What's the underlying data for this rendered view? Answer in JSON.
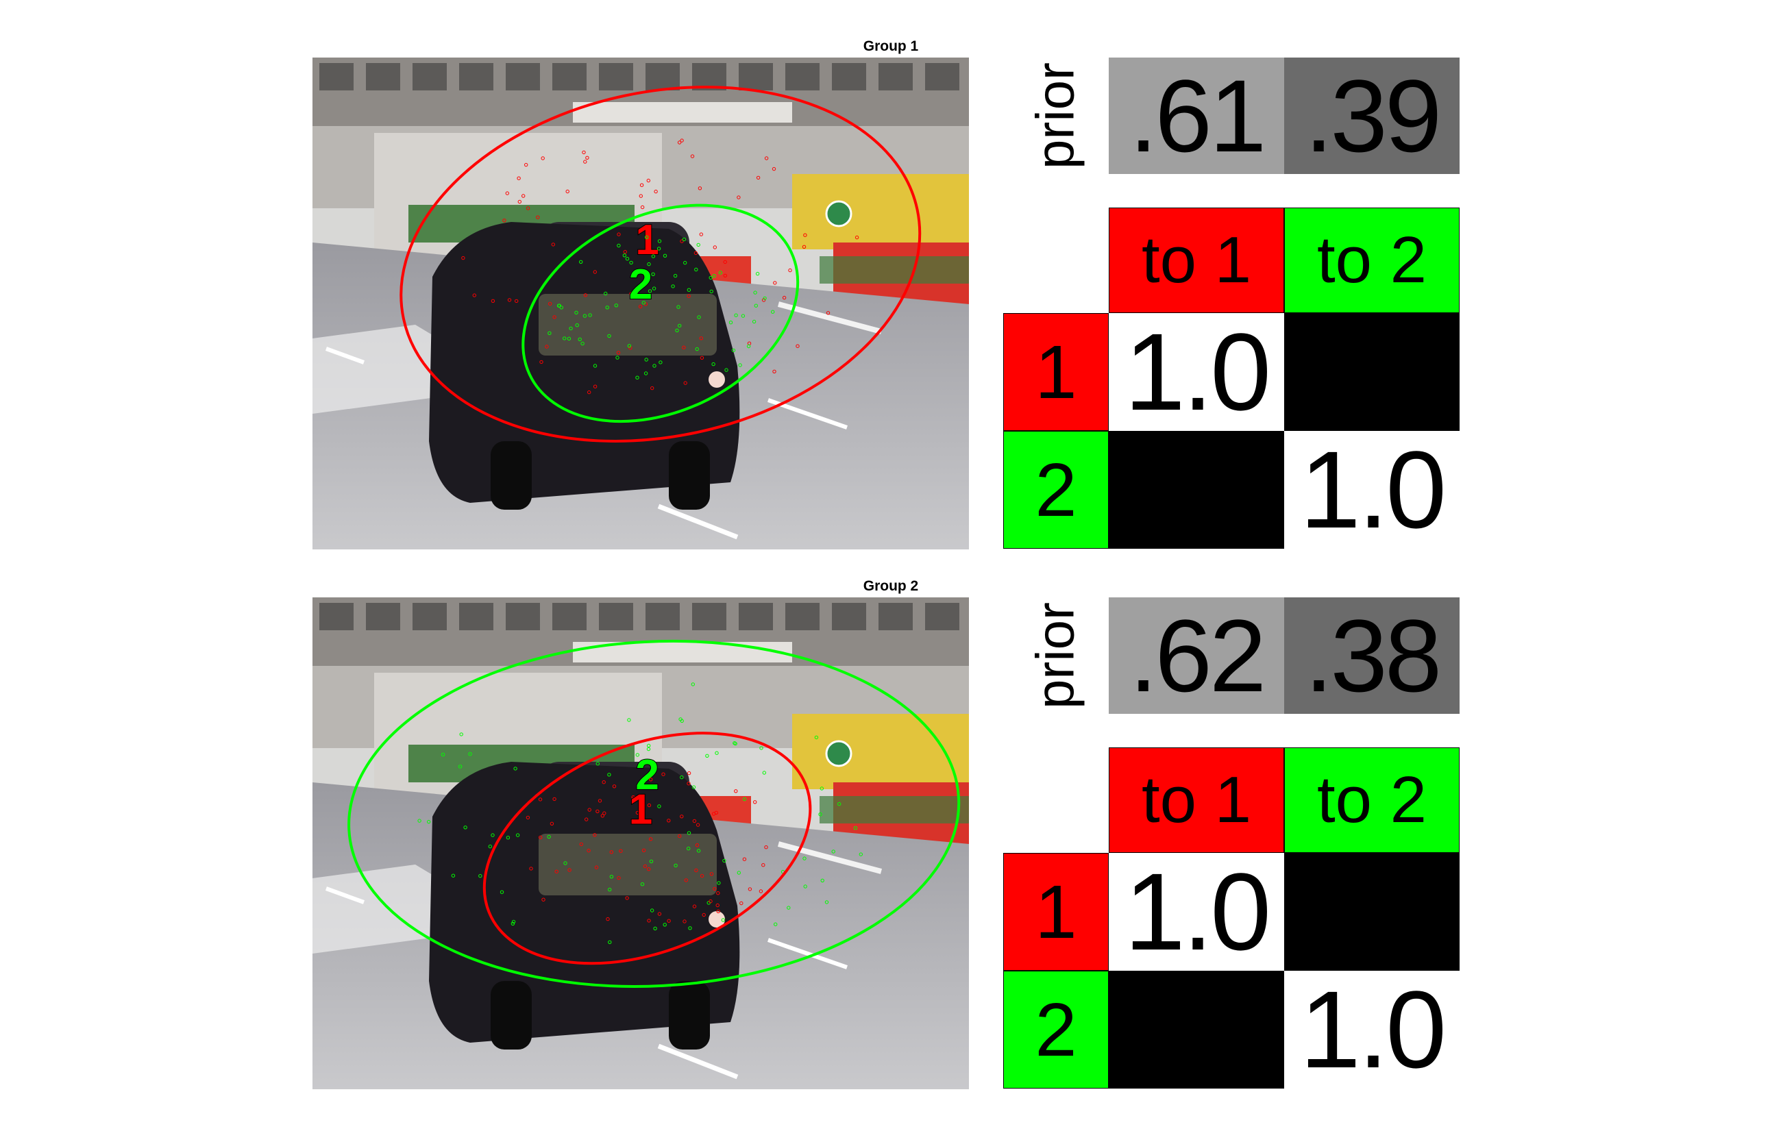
{
  "colors": {
    "cluster_1": "#ff0000",
    "cluster_2": "#00ff00",
    "prior_1_fill": "#a0a0a0",
    "prior_2_fill": "#6b6b6b",
    "one_cell": "#ffffff",
    "zero_cell": "#000000"
  },
  "groups": [
    {
      "title": "Group 1",
      "scene": {
        "cluster_1_label": "1",
        "cluster_2_label": "2",
        "front_layer": "cluster_2",
        "cluster_1_ellipse": {
          "center": [
            0.53,
            0.42
          ],
          "radii": [
            0.4,
            0.35
          ],
          "rotation_deg": -12
        },
        "cluster_2_ellipse": {
          "center": [
            0.53,
            0.52
          ],
          "radii": [
            0.22,
            0.2
          ],
          "rotation_deg": -25
        },
        "cluster_1_marker": [
          0.51,
          0.4
        ],
        "cluster_2_marker": [
          0.5,
          0.49
        ]
      },
      "prior": {
        "label": "prior",
        "values": [
          ".61",
          ".39"
        ],
        "levels": [
          0.61,
          0.39
        ]
      },
      "matrix": {
        "col_headers": [
          "to 1",
          "to 2"
        ],
        "row_headers": [
          "1",
          "2"
        ],
        "cells": [
          [
            "1.0",
            ""
          ],
          [
            "",
            "1.0"
          ]
        ],
        "levels": [
          [
            1.0,
            0.0
          ],
          [
            0.0,
            1.0
          ]
        ]
      }
    },
    {
      "title": "Group 2",
      "scene": {
        "cluster_1_label": "1",
        "cluster_2_label": "2",
        "front_layer": "cluster_1",
        "cluster_1_ellipse": {
          "center": [
            0.51,
            0.51
          ],
          "radii": [
            0.26,
            0.21
          ],
          "rotation_deg": -22
        },
        "cluster_2_ellipse": {
          "center": [
            0.52,
            0.44
          ],
          "radii": [
            0.465,
            0.35
          ],
          "rotation_deg": -3
        },
        "cluster_1_marker": [
          0.5,
          0.46
        ],
        "cluster_2_marker": [
          0.51,
          0.39
        ]
      },
      "prior": {
        "label": "prior",
        "values": [
          ".62",
          ".38"
        ],
        "levels": [
          0.62,
          0.38
        ]
      },
      "matrix": {
        "col_headers": [
          "to 1",
          "to 2"
        ],
        "row_headers": [
          "1",
          "2"
        ],
        "cells": [
          [
            "1.0",
            ""
          ],
          [
            "",
            "1.0"
          ]
        ],
        "levels": [
          [
            1.0,
            0.0
          ],
          [
            0.0,
            1.0
          ]
        ]
      }
    }
  ]
}
